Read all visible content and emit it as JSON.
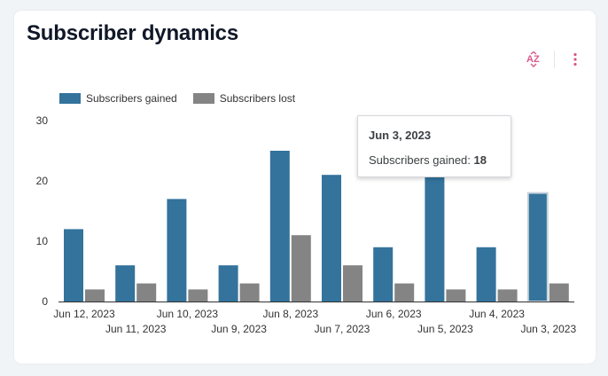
{
  "title": "Subscriber dynamics",
  "toolbar": {
    "sort_icon": "sort-az-icon",
    "more_icon": "more-vert-icon",
    "accent": "#d9578c"
  },
  "tooltip": {
    "date": "Jun 3, 2023",
    "label": "Subscribers gained: ",
    "value": "18"
  },
  "chart_data": {
    "type": "bar",
    "title": "",
    "xlabel": "",
    "ylabel": "",
    "ylim": [
      0,
      30
    ],
    "yticks": [
      0,
      10,
      20,
      30
    ],
    "legend_position": "top-left",
    "categories": [
      "Jun 12, 2023",
      "Jun 11, 2023",
      "Jun 10, 2023",
      "Jun 9, 2023",
      "Jun 8, 2023",
      "Jun 7, 2023",
      "Jun 6, 2023",
      "Jun 5, 2023",
      "Jun 4, 2023",
      "Jun 3, 2023"
    ],
    "series": [
      {
        "name": "Subscribers gained",
        "color": "#33739c",
        "values": [
          12,
          6,
          17,
          6,
          25,
          21,
          9,
          21,
          9,
          18
        ]
      },
      {
        "name": "Subscribers lost",
        "color": "#848484",
        "values": [
          2,
          3,
          2,
          3,
          11,
          6,
          3,
          2,
          2,
          3
        ]
      }
    ],
    "highlighted_category": "Jun 3, 2023"
  }
}
